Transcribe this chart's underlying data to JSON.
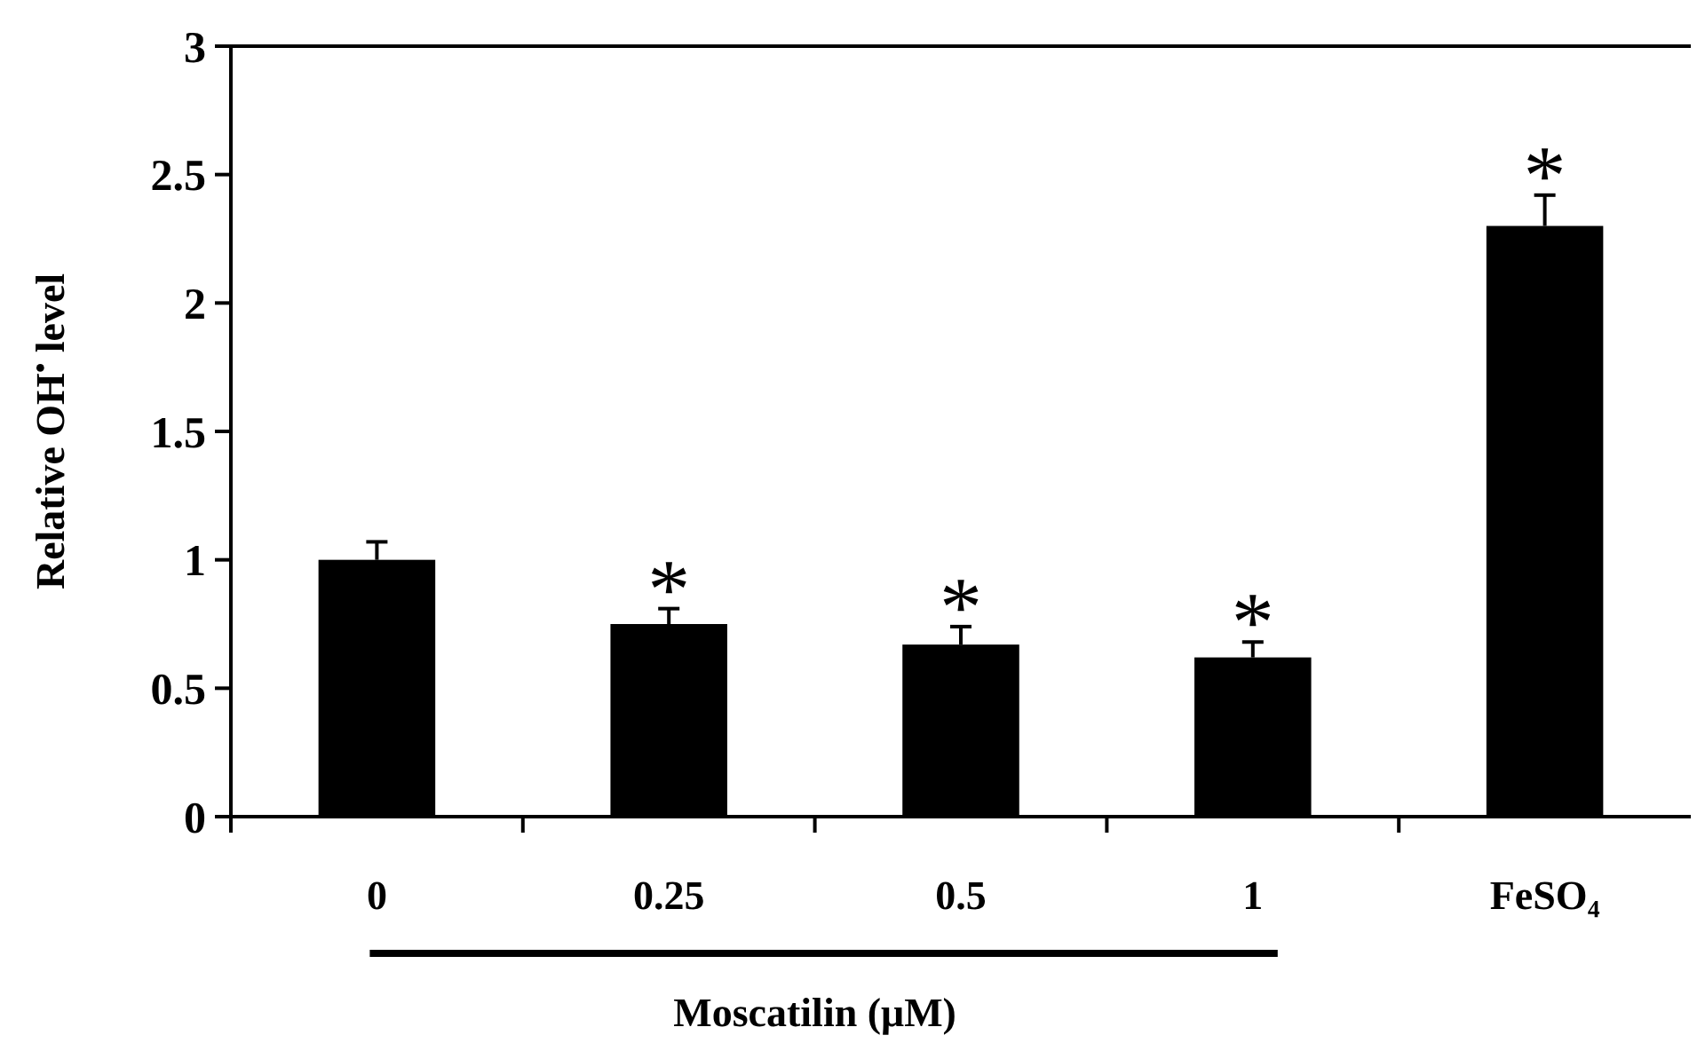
{
  "chart_data": {
    "type": "bar",
    "categories": [
      "0",
      "0.25",
      "0.5",
      "1",
      "FeSO₄"
    ],
    "values": [
      1.0,
      0.75,
      0.67,
      0.62,
      2.3
    ],
    "errors": [
      0.07,
      0.06,
      0.07,
      0.06,
      0.12
    ],
    "color": "#000000",
    "ylim": [
      0,
      3
    ],
    "yticks": [
      0,
      0.5,
      1,
      1.5,
      2,
      2.5,
      3
    ],
    "ylabel": "Relative OH$^{•}$ level",
    "xlabel": "Moscatilin (μM)",
    "grid": false,
    "annotations": [
      {
        "text": "*",
        "x": "0.25",
        "y": 0.81
      },
      {
        "text": "*",
        "x": "0.5",
        "y": 0.74
      },
      {
        "text": "*",
        "x": "1",
        "y": 0.68
      },
      {
        "text": "*",
        "x": "FeSO₄",
        "y": 2.42
      }
    ]
  }
}
